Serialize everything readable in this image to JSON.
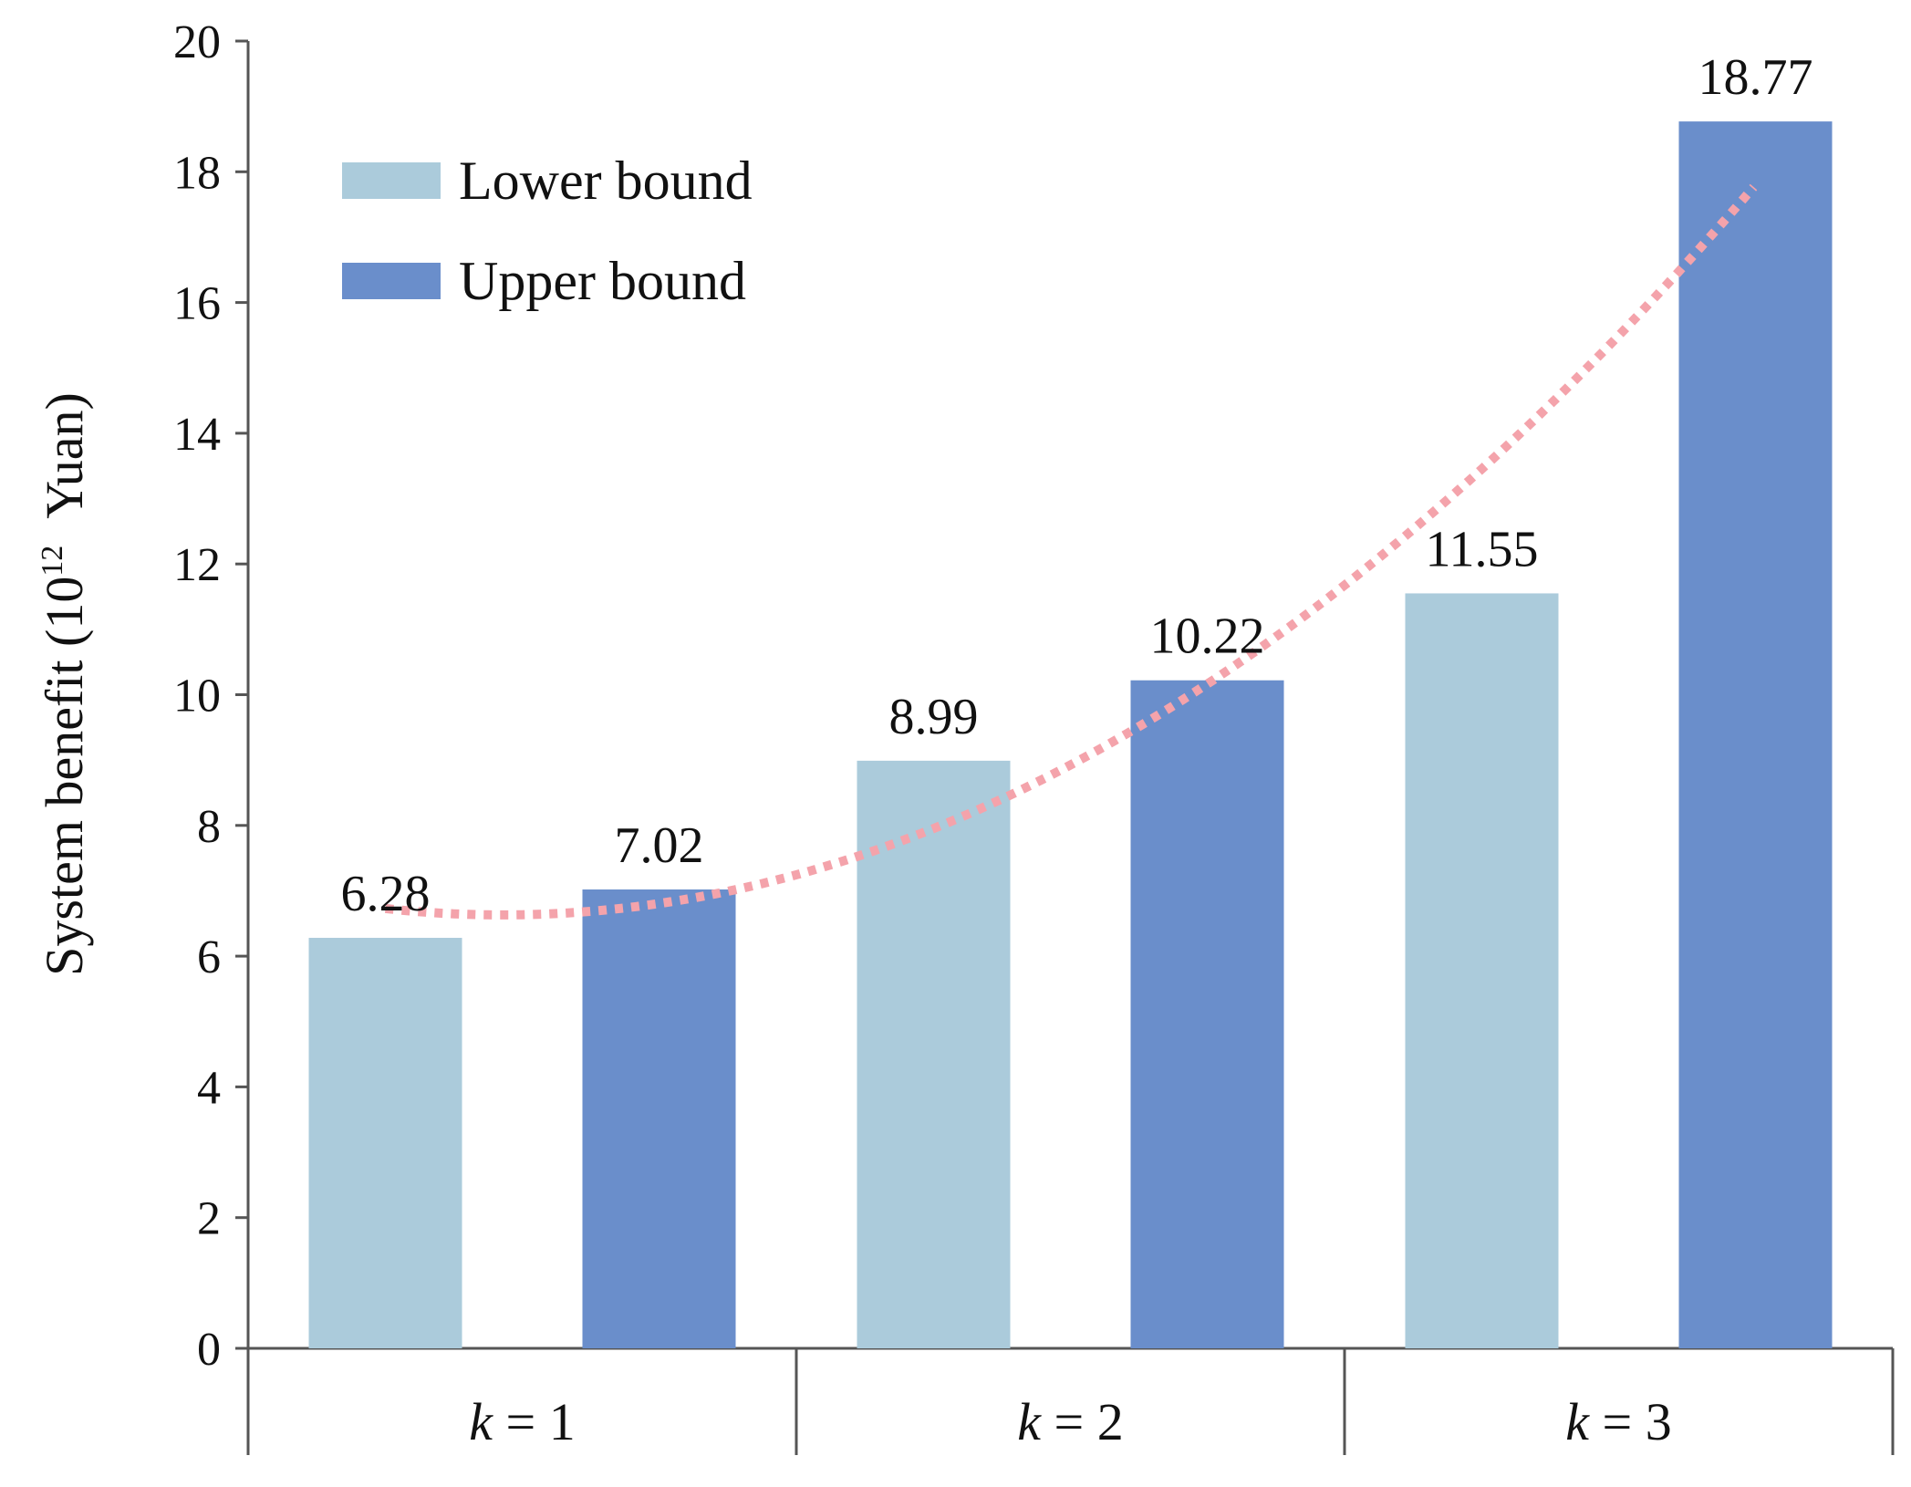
{
  "chart_data": {
    "type": "bar",
    "categories": [
      {
        "var": "k",
        "rest": " = 1"
      },
      {
        "var": "k",
        "rest": " = 2"
      },
      {
        "var": "k",
        "rest": " = 3"
      }
    ],
    "series": [
      {
        "name": "Lower bound",
        "color": "#abcbdb",
        "values": [
          6.28,
          8.99,
          11.55
        ]
      },
      {
        "name": "Upper bound",
        "color": "#6a8ecb",
        "values": [
          7.02,
          10.22,
          18.77
        ]
      }
    ],
    "data_labels": [
      "6.28",
      "7.02",
      "8.99",
      "10.22",
      "11.55",
      "18.77"
    ],
    "trendline": {
      "style": "dotted",
      "color": "#f4a3ab",
      "type": "polynomial"
    },
    "ylabel": {
      "prefix": "System benefit (10",
      "sup": "12",
      "suffix": "  Yuan)"
    },
    "ylim": [
      0,
      20
    ],
    "yticks": [
      0,
      2,
      4,
      6,
      8,
      10,
      12,
      14,
      16,
      18,
      20
    ],
    "grid": false,
    "legend_position": "top-left"
  }
}
